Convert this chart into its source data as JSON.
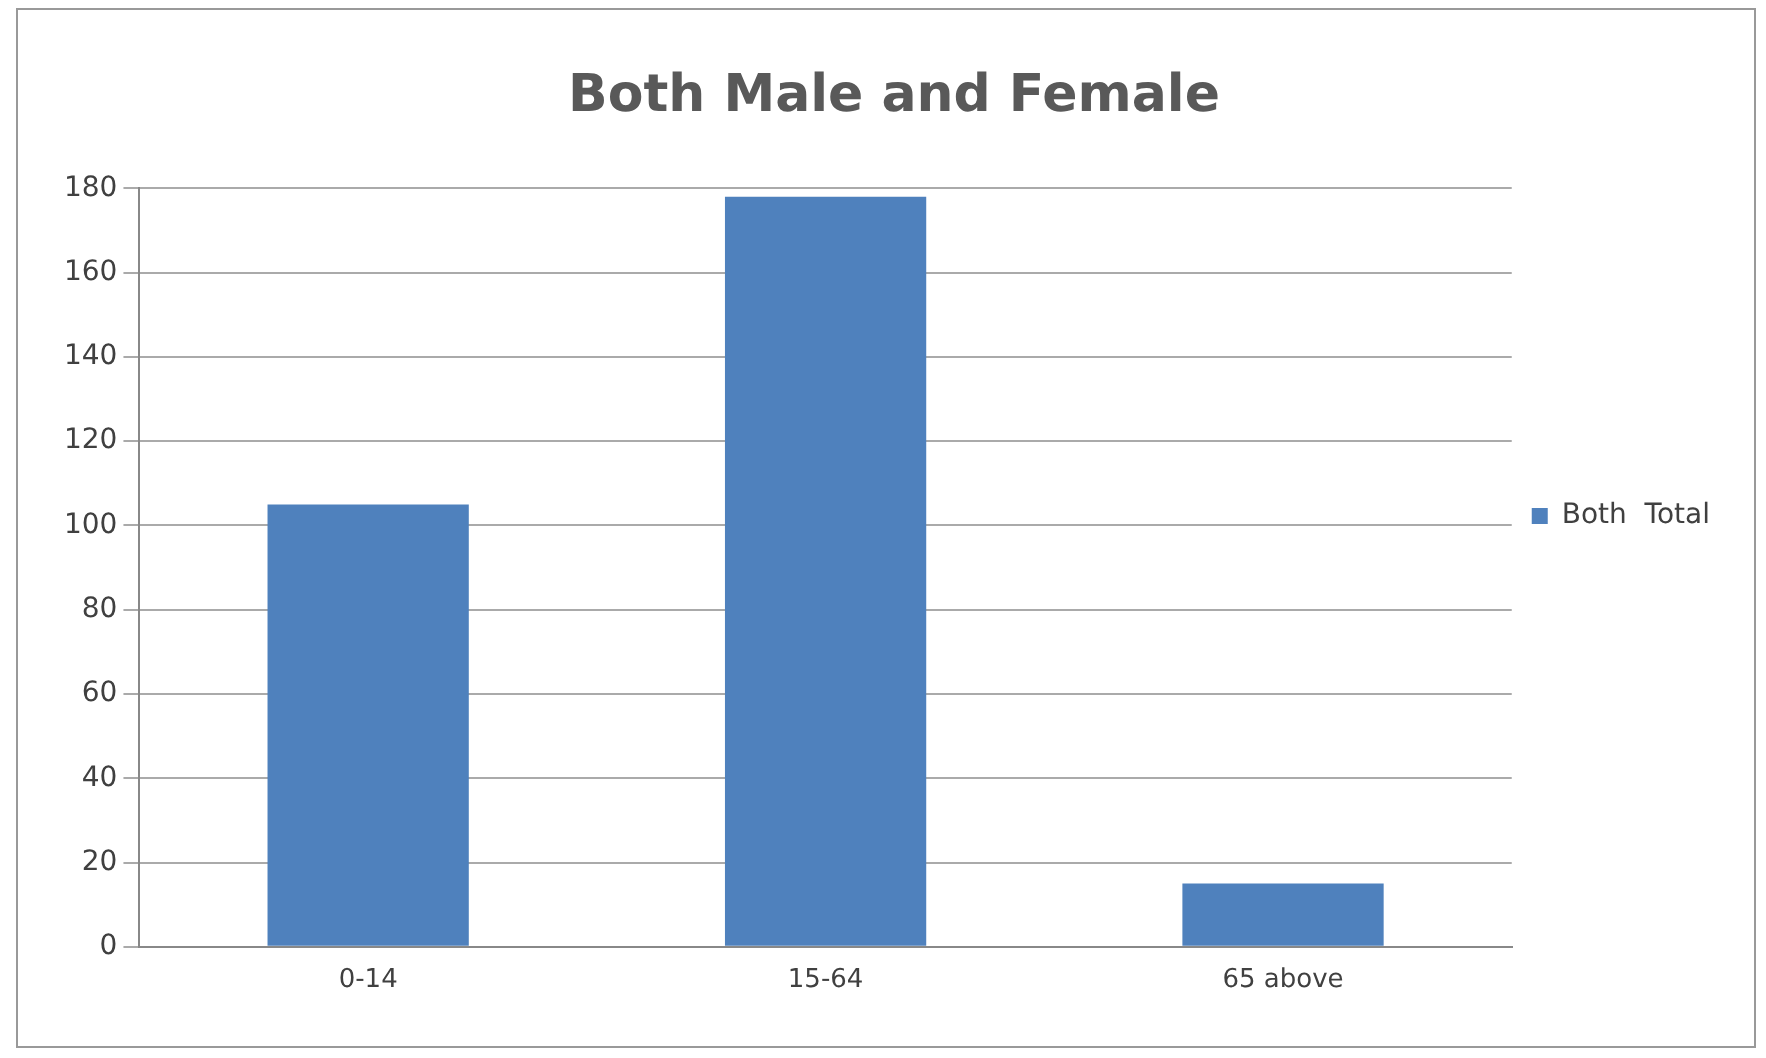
{
  "chart_data": {
    "type": "bar",
    "title": "Both Male and Female",
    "categories": [
      "0-14",
      "15-64",
      "65 above"
    ],
    "series": [
      {
        "name": "Both  Total",
        "color": "#4f81bd",
        "values": [
          105,
          178,
          15
        ]
      }
    ],
    "ylim": [
      0,
      180
    ],
    "yticks": [
      0,
      20,
      40,
      60,
      80,
      100,
      120,
      140,
      160,
      180
    ],
    "grid": "y",
    "legend": "right"
  }
}
